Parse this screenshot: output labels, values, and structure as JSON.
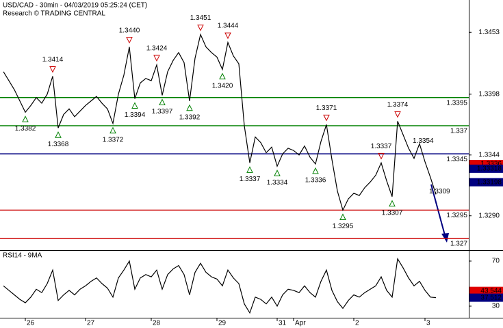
{
  "chart_data": [
    {
      "type": "line",
      "title": "USD/CAD - 30min - 04/03/2019 05:25:24 (CET)",
      "subtitle": "Research © TRADING CENTRAL",
      "categories": [
        null,
        null,
        null,
        null,
        "26",
        null,
        null,
        null,
        null,
        null,
        null,
        null,
        null,
        null,
        null,
        "27",
        null,
        null,
        null,
        null,
        null,
        null,
        null,
        null,
        null,
        null,
        null,
        "28",
        null,
        null,
        null,
        null,
        null,
        null,
        null,
        null,
        null,
        null,
        null,
        "29",
        null,
        null,
        null,
        null,
        null,
        null,
        null,
        null,
        null,
        null,
        "31",
        null,
        null,
        "Apr",
        null,
        null,
        null,
        null,
        null,
        null,
        null,
        null,
        null,
        null,
        "2",
        null,
        null,
        null,
        null,
        null,
        null,
        null,
        null,
        null,
        null,
        null,
        null,
        "3",
        null,
        null
      ],
      "values": [
        1.3418,
        1.341,
        1.3402,
        1.3392,
        1.3382,
        1.3388,
        1.3395,
        1.339,
        1.3398,
        1.3414,
        1.3368,
        1.338,
        1.3385,
        1.3378,
        1.3383,
        1.3388,
        1.3392,
        1.3396,
        1.339,
        1.3385,
        1.3372,
        1.3398,
        1.3415,
        1.344,
        1.3394,
        1.3408,
        1.3412,
        1.341,
        1.3424,
        1.3397,
        1.3418,
        1.3428,
        1.3435,
        1.3426,
        1.3392,
        1.343,
        1.3451,
        1.344,
        1.3435,
        1.3431,
        1.342,
        1.3444,
        1.3432,
        1.3425,
        1.337,
        1.3337,
        1.336,
        1.3355,
        1.3346,
        1.3351,
        1.3334,
        1.3345,
        1.335,
        1.3348,
        1.3344,
        1.3352,
        1.3342,
        1.3336,
        1.3356,
        1.3371,
        1.334,
        1.3312,
        1.3295,
        1.3305,
        1.331,
        1.3308,
        1.3315,
        1.332,
        1.3326,
        1.3337,
        1.3321,
        1.3307,
        1.3374,
        1.3362,
        1.335,
        1.3341,
        1.3354,
        1.3338,
        1.3324,
        1.3309
      ],
      "color": "#000000",
      "ylim": [
        1.32601,
        1.34817
      ],
      "yticks": [
        1.3453,
        1.3398,
        1.3344,
        {
          "value": 1.329,
          "label": "1.3290"
        }
      ],
      "levels": [
        {
          "value": 1.3395,
          "color": "#008000"
        },
        {
          "value": 1.337,
          "color": "#008000"
        },
        {
          "value": 1.3345,
          "color": "#000080"
        },
        {
          "value": 1.3295,
          "color": "#cc0000"
        },
        {
          "value": 1.327,
          "color": "#cc0000"
        }
      ],
      "price_tags": [
        {
          "value": 1.3336,
          "color": "#e00000"
        },
        {
          "value": 1.33318,
          "color": "#000080"
        },
        {
          "value": 1.33198,
          "color": "#000080"
        }
      ],
      "annotations": [
        {
          "value": 1.3382,
          "kind": "low"
        },
        {
          "value": 1.3414,
          "kind": "high"
        },
        {
          "value": 1.3368,
          "kind": "low"
        },
        {
          "value": 1.3372,
          "kind": "low"
        },
        {
          "value": 1.344,
          "label": "1.3440",
          "kind": "high"
        },
        {
          "value": 1.3394,
          "kind": "low"
        },
        {
          "value": 1.3424,
          "kind": "high"
        },
        {
          "value": 1.3397,
          "kind": "low"
        },
        {
          "value": 1.3392,
          "kind": "low"
        },
        {
          "value": 1.3451,
          "kind": "high"
        },
        {
          "value": 1.342,
          "label": "1.3420",
          "kind": "low"
        },
        {
          "value": 1.3444,
          "kind": "high"
        },
        {
          "value": 1.3337,
          "kind": "low"
        },
        {
          "value": 1.3334,
          "kind": "low"
        },
        {
          "value": 1.3336,
          "kind": "low"
        },
        {
          "value": 1.3371,
          "kind": "high"
        },
        {
          "value": 1.3295,
          "kind": "low"
        },
        {
          "value": 1.3337,
          "kind": "high"
        },
        {
          "value": 1.3307,
          "kind": "low"
        },
        {
          "value": 1.3374,
          "kind": "high"
        },
        {
          "value": 1.3354,
          "kind": "plain"
        },
        {
          "value": 1.3309,
          "kind": "plain"
        }
      ]
    },
    {
      "type": "line",
      "title": "RSI14 - 9MA",
      "values": [
        48,
        44,
        40,
        36,
        33,
        38,
        45,
        42,
        50,
        62,
        35,
        40,
        44,
        40,
        45,
        48,
        52,
        55,
        50,
        46,
        38,
        55,
        62,
        70,
        45,
        55,
        58,
        56,
        62,
        45,
        58,
        63,
        66,
        58,
        40,
        60,
        68,
        60,
        56,
        54,
        48,
        62,
        55,
        50,
        32,
        24,
        38,
        36,
        32,
        38,
        30,
        40,
        45,
        44,
        42,
        48,
        42,
        38,
        52,
        62,
        44,
        34,
        28,
        35,
        40,
        38,
        42,
        45,
        48,
        56,
        44,
        38,
        72,
        64,
        55,
        48,
        52,
        44,
        38,
        37.512
      ],
      "color": "#000000",
      "ylim": [
        19.7,
        78.5
      ],
      "yticks": [
        70,
        30
      ],
      "value_tags": [
        {
          "value": 43.544,
          "color": "#e00000"
        },
        {
          "value": 37.512,
          "color": "#000080"
        }
      ]
    }
  ]
}
